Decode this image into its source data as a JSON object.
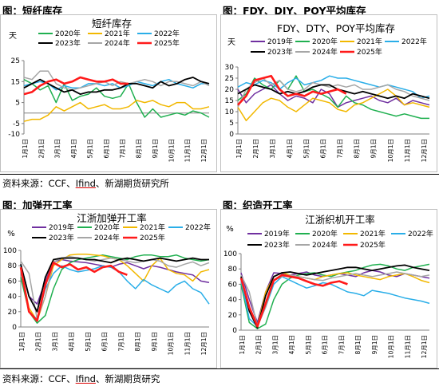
{
  "figures": [
    {
      "caption": "图：短纤库存"
    },
    {
      "caption": "图：FDY、DIY、POY平均库存"
    },
    {
      "caption": "图：加弹开工率"
    },
    {
      "caption": "图：织造开工率"
    }
  ],
  "sources": [
    {
      "prefix": "资料来源：CCF、",
      "underlined": "Ifind",
      "suffix": "、新湖期货研究所"
    },
    {
      "prefix": "资料来源：CCF、",
      "underlined": "Ifind",
      "suffix": "、新湖期货研究"
    }
  ],
  "colors": {
    "2019年": "#7030a0",
    "2020年": "#20b050",
    "2021年": "#f2b800",
    "2022年": "#2aaee8",
    "2023年": "#000000",
    "2024年": "#a6a6a6",
    "2025年": "#ff1a1a"
  },
  "months": [
    "1月1日",
    "2月1日",
    "3月1日",
    "4月1日",
    "5月1日",
    "6月1日",
    "7月1日",
    "8月1日",
    "9月1日",
    "10月1日",
    "11月1日",
    "12月1日"
  ],
  "chart_data": [
    {
      "type": "line",
      "title": "短纤库存",
      "ylabel": "天",
      "ylim": [
        -10,
        25
      ],
      "yticks": [
        "-10",
        "-5",
        "5",
        "15",
        "25"
      ],
      "ytick_values": [
        -10,
        -5,
        5,
        15,
        25
      ],
      "legend_placement": "top",
      "legend": [
        "2020年",
        "2021年",
        "2022年",
        "2023年",
        "2024年",
        "2025年"
      ],
      "series": [
        {
          "name": "2020年",
          "values": [
            16,
            14,
            11,
            13,
            5,
            14,
            6,
            8,
            9,
            12,
            8,
            7,
            8,
            14,
            5,
            -2,
            2,
            -2,
            -1,
            0,
            -1,
            1,
            0,
            -2
          ]
        },
        {
          "name": "2021年",
          "values": [
            -4,
            -3,
            -3,
            -1,
            3,
            1,
            3,
            5,
            2,
            3,
            4,
            2,
            2,
            3,
            6,
            5,
            6,
            4,
            3,
            5,
            5,
            2,
            2,
            3
          ]
        },
        {
          "name": "2022年",
          "values": [
            13,
            14,
            15,
            14,
            11,
            13,
            12,
            12,
            14,
            14,
            13,
            14,
            12,
            13,
            15,
            14,
            13,
            15,
            16,
            14,
            13,
            12,
            14,
            14
          ]
        },
        {
          "name": "2023年",
          "values": [
            12,
            14,
            16,
            14,
            12,
            10,
            11,
            9,
            10,
            10,
            11,
            11,
            12,
            14,
            14,
            13,
            12,
            15,
            13,
            14,
            16,
            17,
            15,
            14
          ]
        },
        {
          "name": "2024年",
          "values": [
            17,
            16,
            20,
            20,
            14,
            12,
            11,
            12,
            13,
            14,
            15,
            13,
            15,
            14,
            15,
            16,
            15,
            13,
            15,
            15,
            14,
            13,
            15,
            13
          ]
        },
        {
          "name": "2025年",
          "values": [
            9,
            10,
            13,
            15,
            16,
            14,
            15,
            17,
            16,
            15,
            15,
            16,
            14,
            14,
            null,
            null,
            null,
            null,
            null,
            null,
            null,
            null,
            null,
            null
          ]
        }
      ]
    },
    {
      "type": "line",
      "title": "FDY、DTY、POY平均库存",
      "ylabel": "天",
      "ylim": [
        0,
        30
      ],
      "yticks": [
        "0",
        "5",
        "10",
        "15",
        "20",
        "25",
        "30"
      ],
      "ytick_values": [
        0,
        5,
        10,
        15,
        20,
        25,
        30
      ],
      "legend_placement": "top",
      "legend": [
        "2019年",
        "2020年",
        "2021年",
        "2022年",
        "2023年",
        "2024年",
        "2025年"
      ],
      "series": [
        {
          "name": "2019年",
          "values": [
            20,
            14,
            18,
            20,
            22,
            18,
            15,
            17,
            16,
            14,
            20,
            18,
            12,
            14,
            15,
            16,
            17,
            15,
            14,
            16,
            13,
            15,
            14,
            13
          ]
        },
        {
          "name": "2020年",
          "values": [
            15,
            18,
            25,
            22,
            20,
            24,
            20,
            26,
            19,
            20,
            18,
            16,
            12,
            17,
            14,
            13,
            11,
            10,
            9,
            8,
            9,
            8,
            7,
            7
          ]
        },
        {
          "name": "2021年",
          "values": [
            12,
            6,
            10,
            14,
            16,
            15,
            12,
            10,
            13,
            16,
            15,
            14,
            11,
            10,
            13,
            14,
            16,
            18,
            20,
            17,
            13,
            14,
            13,
            12
          ]
        },
        {
          "name": "2022年",
          "values": [
            21,
            23,
            22,
            24,
            23,
            20,
            23,
            25,
            22,
            23,
            24,
            26,
            25,
            25,
            24,
            23,
            22,
            21,
            22,
            21,
            20,
            19,
            16,
            17
          ]
        },
        {
          "name": "2023年",
          "values": [
            18,
            20,
            22,
            21,
            20,
            18,
            19,
            18,
            19,
            21,
            22,
            22,
            20,
            19,
            18,
            19,
            18,
            17,
            16,
            17,
            16,
            18,
            17,
            16
          ]
        },
        {
          "name": "2024年",
          "values": [
            12,
            20,
            23,
            25,
            22,
            24,
            20,
            19,
            20,
            23,
            22,
            21,
            22,
            21,
            22,
            20,
            20,
            21,
            22,
            20,
            19,
            17,
            16,
            15
          ]
        },
        {
          "name": "2025年",
          "values": [
            13,
            17,
            24,
            25,
            26,
            20,
            17,
            18,
            17,
            19,
            18,
            19,
            20,
            18,
            null,
            null,
            null,
            null,
            null,
            null,
            null,
            null,
            null,
            null
          ]
        }
      ]
    },
    {
      "type": "line",
      "title": "江浙加弹开工率",
      "ylabel": "%",
      "ylim": [
        0,
        100
      ],
      "yticks": [
        "0",
        "20",
        "40",
        "60",
        "80",
        "100"
      ],
      "ytick_values": [
        0,
        20,
        40,
        60,
        80,
        100
      ],
      "legend_placement": "top",
      "legend": [
        "2019年",
        "2020年",
        "2021年",
        "2022年",
        "2023年",
        "2024年",
        "2025年"
      ],
      "series": [
        {
          "name": "2019年",
          "values": [
            82,
            40,
            30,
            60,
            85,
            88,
            86,
            85,
            84,
            82,
            80,
            78,
            82,
            84,
            80,
            76,
            80,
            78,
            75,
            72,
            70,
            68,
            60,
            58
          ]
        },
        {
          "name": "2020年",
          "values": [
            65,
            20,
            5,
            15,
            50,
            75,
            84,
            88,
            90,
            92,
            94,
            92,
            90,
            88,
            92,
            94,
            94,
            92,
            92,
            94,
            90,
            88,
            86,
            88
          ]
        },
        {
          "name": "2021年",
          "values": [
            78,
            25,
            8,
            40,
            80,
            88,
            94,
            95,
            95,
            94,
            93,
            90,
            88,
            80,
            70,
            60,
            80,
            90,
            75,
            70,
            68,
            60,
            72,
            75
          ]
        },
        {
          "name": "2022年",
          "values": [
            80,
            20,
            10,
            50,
            70,
            80,
            75,
            72,
            74,
            76,
            80,
            78,
            72,
            60,
            50,
            62,
            55,
            50,
            45,
            55,
            60,
            50,
            45,
            30
          ]
        },
        {
          "name": "2023年",
          "values": [
            82,
            40,
            20,
            65,
            88,
            90,
            90,
            90,
            88,
            88,
            86,
            84,
            88,
            90,
            88,
            86,
            88,
            90,
            88,
            86,
            88,
            90,
            88,
            88
          ]
        },
        {
          "name": "2024年",
          "values": [
            86,
            70,
            10,
            40,
            85,
            90,
            92,
            90,
            88,
            86,
            88,
            90,
            88,
            86,
            84,
            86,
            88,
            86,
            80,
            78,
            82,
            85,
            80,
            84
          ]
        },
        {
          "name": "2025年",
          "values": [
            78,
            20,
            8,
            55,
            84,
            78,
            82,
            75,
            78,
            72,
            78,
            80,
            72,
            68,
            null,
            null,
            null,
            null,
            null,
            null,
            null,
            null,
            null,
            null
          ]
        }
      ]
    },
    {
      "type": "line",
      "title": "江浙织机开工率",
      "ylabel": "%",
      "ylim": [
        0,
        100
      ],
      "yticks": [
        "0",
        "20",
        "40",
        "60",
        "80",
        "100"
      ],
      "ytick_values": [
        0,
        20,
        40,
        60,
        80,
        100
      ],
      "legend_placement": "top",
      "legend": [
        "2019年",
        "2020年",
        "2021年",
        "2022年",
        "2023年",
        "2024年",
        "2025年"
      ],
      "series": [
        {
          "name": "2019年",
          "values": [
            75,
            40,
            10,
            50,
            75,
            74,
            72,
            74,
            76,
            72,
            70,
            72,
            74,
            72,
            70,
            75,
            78,
            76,
            72,
            70,
            74,
            72,
            70,
            68
          ]
        },
        {
          "name": "2020年",
          "values": [
            60,
            10,
            2,
            8,
            40,
            60,
            68,
            72,
            74,
            75,
            72,
            70,
            74,
            76,
            78,
            82,
            85,
            86,
            84,
            80,
            78,
            82,
            84,
            86
          ]
        },
        {
          "name": "2021年",
          "values": [
            68,
            30,
            5,
            50,
            70,
            75,
            72,
            70,
            68,
            66,
            70,
            72,
            74,
            75,
            72,
            70,
            68,
            66,
            70,
            72,
            74,
            70,
            65,
            62
          ]
        },
        {
          "name": "2022年",
          "values": [
            65,
            15,
            5,
            30,
            60,
            70,
            65,
            60,
            55,
            58,
            62,
            60,
            55,
            50,
            48,
            45,
            52,
            50,
            48,
            45,
            42,
            40,
            38,
            35
          ]
        },
        {
          "name": "2023年",
          "values": [
            70,
            25,
            3,
            45,
            70,
            75,
            76,
            74,
            72,
            74,
            76,
            78,
            80,
            82,
            82,
            80,
            78,
            80,
            82,
            84,
            85,
            82,
            80,
            78
          ]
        },
        {
          "name": "2024年",
          "values": [
            72,
            50,
            5,
            30,
            65,
            70,
            72,
            70,
            68,
            66,
            65,
            68,
            70,
            72,
            74,
            72,
            70,
            72,
            74,
            76,
            74,
            72,
            70,
            72
          ]
        },
        {
          "name": "2025年",
          "values": [
            68,
            30,
            5,
            35,
            65,
            72,
            70,
            68,
            64,
            60,
            58,
            62,
            64,
            60,
            null,
            null,
            null,
            null,
            null,
            null,
            null,
            null,
            null,
            null
          ]
        }
      ]
    }
  ]
}
